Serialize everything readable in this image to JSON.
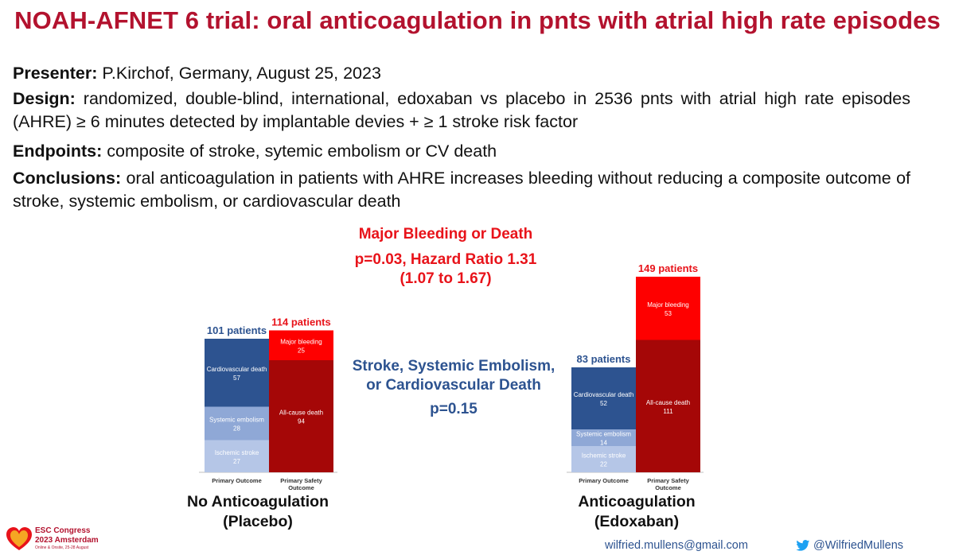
{
  "slide": {
    "title": "NOAH-AFNET 6 trial: oral anticoagulation in pnts with atrial high rate episodes",
    "presenter_label": "Presenter:",
    "presenter_text": " P.Kirchof, Germany, August 25, 2023",
    "design_label": "Design:",
    "design_text": " randomized, double-blind, international, edoxaban vs placebo in 2536 pnts with atrial high rate episodes (AHRE) ≥ 6 minutes detected by implantable devies + ≥ 1 stroke risk factor",
    "endpoints_label": "Endpoints:",
    "endpoints_text": " composite of stroke, sytemic embolism or CV death",
    "conclusions_label": "Conclusions:",
    "conclusions_text": " oral anticoagulation in patients with AHRE increases bleeding without reducing a composite outcome of stroke, systemic embolism, or cardiovascular death"
  },
  "annotations": {
    "bleeding_title": "Major Bleeding or Death",
    "bleeding_p": "p=0.03, Hazard Ratio 1.31",
    "bleeding_ci": "(1.07 to 1.67)",
    "stroke_title_1": "Stroke, Systemic Embolism,",
    "stroke_title_2": "or Cardiovascular Death",
    "stroke_p": "p=0.15"
  },
  "groups": {
    "left_1": "No Anticoagulation",
    "left_2": "(Placebo)",
    "right_1": "Anticoagulation",
    "right_2": "(Edoxaban)"
  },
  "footer": {
    "logo_line1": "ESC Congress",
    "logo_line2": "2023 Amsterdam",
    "logo_line3": "Online & Onsite, 25-28 August",
    "email": "wilfried.mullens@gmail.com",
    "twitter": "@WilfriedMullens"
  },
  "colors": {
    "title_red": "#b3122e",
    "annotation_red": "#e8131a",
    "annotation_blue": "#2d5390",
    "major_bleeding": "#fe0000",
    "all_cause_death": "#a50707",
    "cv_death": "#2d5390",
    "systemic_embolism": "#8fa8d6",
    "ischemic_stroke": "#b5c6e7"
  },
  "chart_data": [
    {
      "type": "bar",
      "stacked": true,
      "group": "No Anticoagulation (Placebo)",
      "categories": [
        "Primary Outcome",
        "Primary Safety Outcome"
      ],
      "totals": [
        {
          "label": "101 patients",
          "value": 101
        },
        {
          "label": "114 patients",
          "value": 114
        }
      ],
      "series": [
        {
          "name": "Ischemic stroke",
          "values": [
            27,
            null
          ]
        },
        {
          "name": "Systemic embolism",
          "values": [
            28,
            null
          ]
        },
        {
          "name": "Cardiovascular death",
          "values": [
            57,
            null
          ]
        },
        {
          "name": "All-cause death",
          "values": [
            null,
            94
          ]
        },
        {
          "name": "Major bleeding",
          "values": [
            null,
            25
          ]
        }
      ]
    },
    {
      "type": "bar",
      "stacked": true,
      "group": "Anticoagulation (Edoxaban)",
      "categories": [
        "Primary Outcome",
        "Primary Safety Outcome"
      ],
      "totals": [
        {
          "label": "83 patients",
          "value": 83
        },
        {
          "label": "149 patients",
          "value": 149
        }
      ],
      "series": [
        {
          "name": "Ischemic stroke",
          "values": [
            22,
            null
          ]
        },
        {
          "name": "Systemic embolism",
          "values": [
            14,
            null
          ]
        },
        {
          "name": "Cardiovascular death",
          "values": [
            52,
            null
          ]
        },
        {
          "name": "All-cause death",
          "values": [
            null,
            111
          ]
        },
        {
          "name": "Major bleeding",
          "values": [
            null,
            53
          ]
        }
      ]
    }
  ]
}
